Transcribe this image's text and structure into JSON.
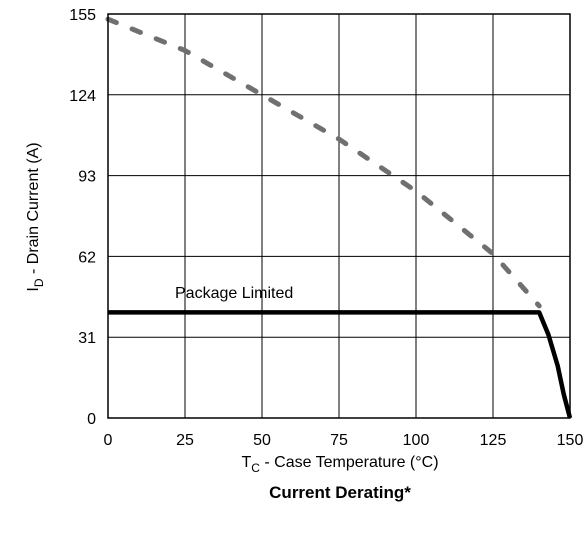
{
  "chart_data": {
    "type": "line",
    "title": "Current Derating*",
    "xlabel": {
      "main": "T",
      "sub": "C",
      "rest": " - Case Temperature (°C)"
    },
    "ylabel": {
      "main": "I",
      "sub": "D",
      "rest": " - Drain Current (A)"
    },
    "xlim": [
      0,
      150
    ],
    "ylim": [
      0,
      155
    ],
    "x_ticks": [
      0,
      25,
      50,
      75,
      100,
      125,
      150
    ],
    "y_ticks": [
      0,
      31,
      62,
      93,
      124,
      155
    ],
    "grid": true,
    "annotation": "Package Limited",
    "series": [
      {
        "style": "dashed",
        "color": "#707070",
        "x": [
          0,
          25,
          50,
          75,
          100,
          125,
          140
        ],
        "y": [
          153,
          141,
          124,
          107,
          87,
          63,
          43
        ]
      },
      {
        "style": "solid",
        "color": "#000000",
        "x": [
          0,
          140,
          143,
          146,
          148,
          150
        ],
        "y": [
          40.5,
          40.5,
          32,
          20,
          9,
          0
        ]
      }
    ]
  }
}
